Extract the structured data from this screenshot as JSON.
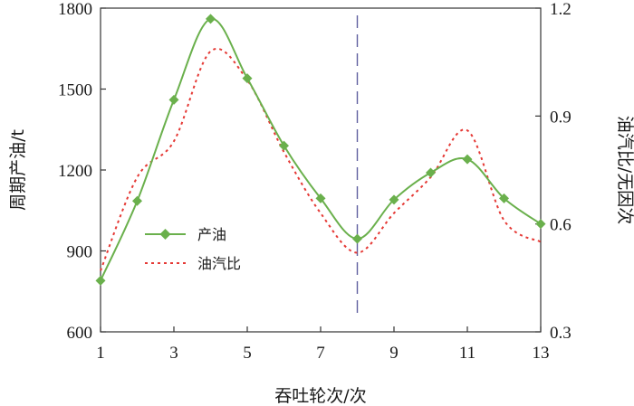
{
  "chart_data": {
    "type": "line",
    "xlabel": "吞吐轮次/次",
    "ylabel_left": "周期产油/t",
    "ylabel_right": "油汽比/无因次",
    "x_range": [
      1,
      13
    ],
    "x_ticks": [
      1,
      3,
      5,
      7,
      9,
      11,
      13
    ],
    "x_tick_labels": [
      "1",
      "3",
      "5",
      "7",
      "9",
      "11",
      "13"
    ],
    "y_left_range": [
      600,
      1800
    ],
    "y_left_ticks": [
      600,
      900,
      1200,
      1500,
      1800
    ],
    "y_left_tick_labels": [
      "600",
      "900",
      "1200",
      "1500",
      "1800"
    ],
    "y_right_range": [
      0.3,
      1.2
    ],
    "y_right_ticks": [
      0.3,
      0.6,
      0.9,
      1.2
    ],
    "y_right_tick_labels": [
      "0.3",
      "0.6",
      "0.9",
      "1.2"
    ],
    "grid": false,
    "legend_position": "bottom-left",
    "vertical_marker_x": 8,
    "series": [
      {
        "name": "产油",
        "axis": "left",
        "style": "solid-diamond",
        "color": "#6ab04c",
        "x": [
          1,
          2,
          3,
          4,
          5,
          6,
          7,
          8,
          9,
          10,
          11,
          12,
          13
        ],
        "values": [
          790,
          1085,
          1460,
          1760,
          1540,
          1290,
          1095,
          945,
          1090,
          1190,
          1240,
          1095,
          1000
        ]
      },
      {
        "name": "油汽比",
        "axis": "right",
        "style": "dotted",
        "color": "#e53935",
        "x": [
          1,
          2,
          3,
          4,
          5,
          6,
          7,
          8,
          9,
          10,
          11,
          12,
          13
        ],
        "values": [
          0.47,
          0.73,
          0.83,
          1.08,
          1.0,
          0.8,
          0.63,
          0.52,
          0.63,
          0.73,
          0.86,
          0.61,
          0.55
        ]
      }
    ]
  }
}
